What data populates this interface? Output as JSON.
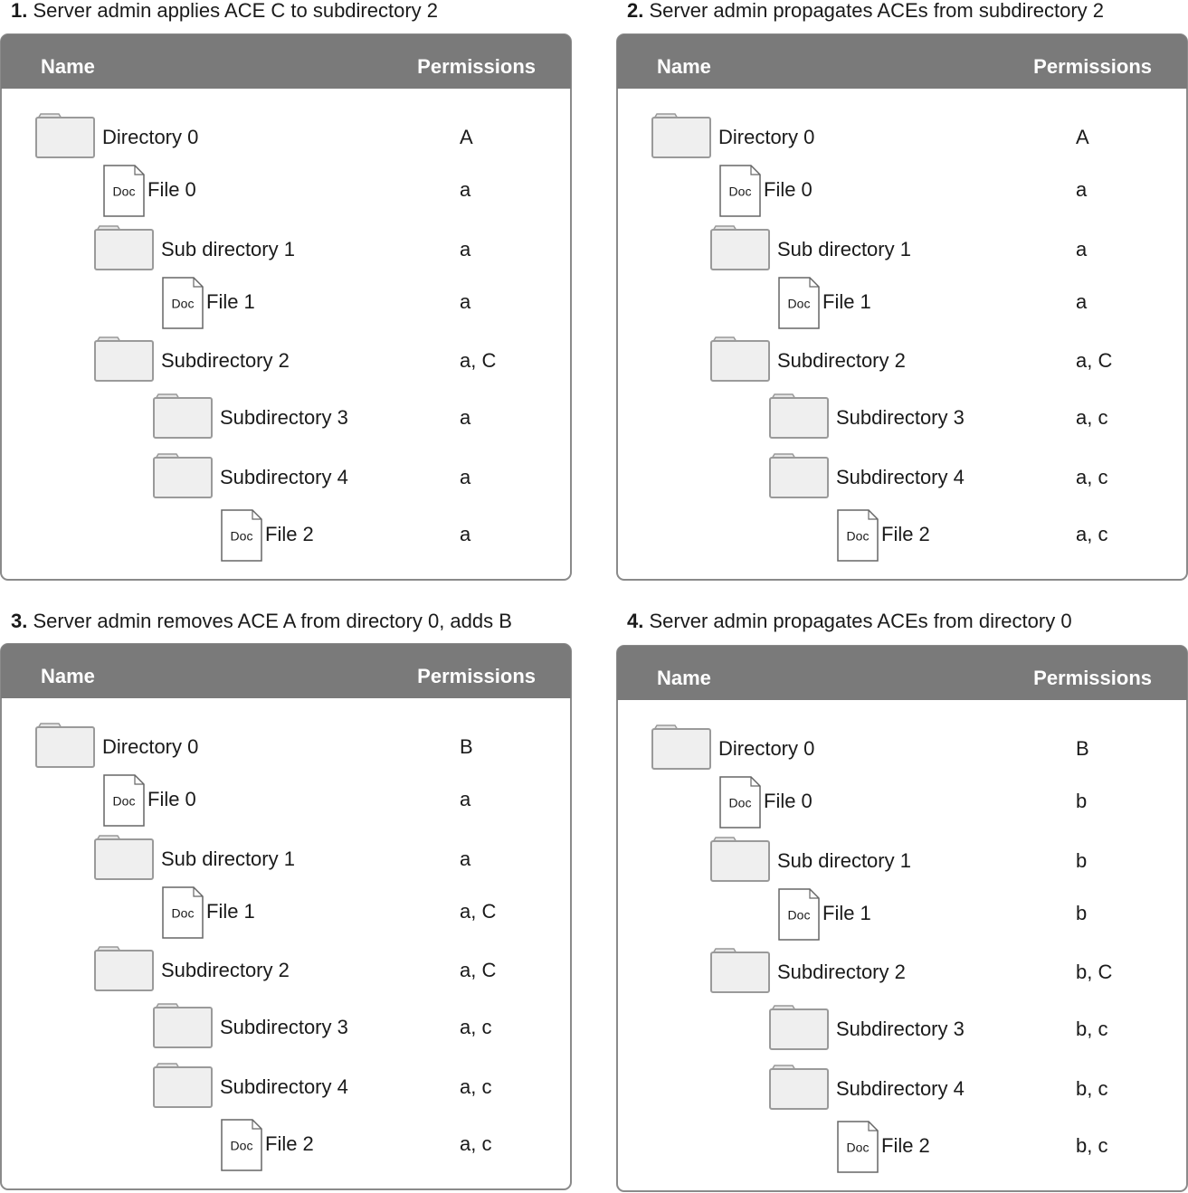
{
  "panels": [
    {
      "number": "1.",
      "title": "Server admin applies ACE C to subdirectory 2",
      "header": {
        "name": "Name",
        "permissions": "Permissions"
      },
      "tree": {
        "name": "Directory 0",
        "permissions": "A",
        "children": [
          {
            "name": "File 0",
            "icon_label": "Doc",
            "permissions": "a"
          },
          {
            "name": "Sub directory 1",
            "permissions": "a",
            "children": [
              {
                "name": "File 1",
                "icon_label": "Doc",
                "permissions": "a"
              }
            ]
          },
          {
            "name": "Subdirectory 2",
            "permissions": "a, C",
            "children": [
              {
                "name": "Subdirectory 3",
                "permissions": "a"
              },
              {
                "name": "Subdirectory 4",
                "permissions": "a",
                "children": [
                  {
                    "name": "File 2",
                    "icon_label": "Doc",
                    "permissions": "a"
                  }
                ]
              }
            ]
          }
        ]
      }
    },
    {
      "number": "2.",
      "title": "Server admin propagates ACEs from subdirectory 2",
      "header": {
        "name": "Name",
        "permissions": "Permissions"
      },
      "tree": {
        "name": "Directory 0",
        "permissions": "A",
        "children": [
          {
            "name": "File 0",
            "icon_label": "Doc",
            "permissions": "a"
          },
          {
            "name": "Sub directory 1",
            "permissions": "a",
            "children": [
              {
                "name": "File 1",
                "icon_label": "Doc",
                "permissions": "a"
              }
            ]
          },
          {
            "name": "Subdirectory 2",
            "permissions": "a, C",
            "children": [
              {
                "name": "Subdirectory 3",
                "permissions": "a, c"
              },
              {
                "name": "Subdirectory 4",
                "permissions": "a, c",
                "children": [
                  {
                    "name": "File 2",
                    "icon_label": "Doc",
                    "permissions": "a, c"
                  }
                ]
              }
            ]
          }
        ]
      }
    },
    {
      "number": "3.",
      "title": "Server admin removes ACE A from directory 0, adds B",
      "header": {
        "name": "Name",
        "permissions": "Permissions"
      },
      "tree": {
        "name": "Directory 0",
        "permissions": "B",
        "children": [
          {
            "name": "File 0",
            "icon_label": "Doc",
            "permissions": "a"
          },
          {
            "name": "Sub directory 1",
            "permissions": "a",
            "children": [
              {
                "name": "File 1",
                "icon_label": "Doc",
                "permissions": "a, C"
              }
            ]
          },
          {
            "name": "Subdirectory 2",
            "permissions": "a, C",
            "children": [
              {
                "name": "Subdirectory 3",
                "permissions": "a, c"
              },
              {
                "name": "Subdirectory 4",
                "permissions": "a, c",
                "children": [
                  {
                    "name": "File 2",
                    "icon_label": "Doc",
                    "permissions": "a, c"
                  }
                ]
              }
            ]
          }
        ]
      }
    },
    {
      "number": "4.",
      "title": "Server admin propagates ACEs from directory 0",
      "header": {
        "name": "Name",
        "permissions": "Permissions"
      },
      "tree": {
        "name": "Directory 0",
        "permissions": "B",
        "children": [
          {
            "name": "File 0",
            "icon_label": "Doc",
            "permissions": "b"
          },
          {
            "name": "Sub directory 1",
            "permissions": "b",
            "children": [
              {
                "name": "File 1",
                "icon_label": "Doc",
                "permissions": "b"
              }
            ]
          },
          {
            "name": "Subdirectory 2",
            "permissions": "b, C",
            "children": [
              {
                "name": "Subdirectory 3",
                "permissions": "b, c"
              },
              {
                "name": "Subdirectory 4",
                "permissions": "b, c",
                "children": [
                  {
                    "name": "File 2",
                    "icon_label": "Doc",
                    "permissions": "b, c"
                  }
                ]
              }
            ]
          }
        ]
      }
    }
  ]
}
